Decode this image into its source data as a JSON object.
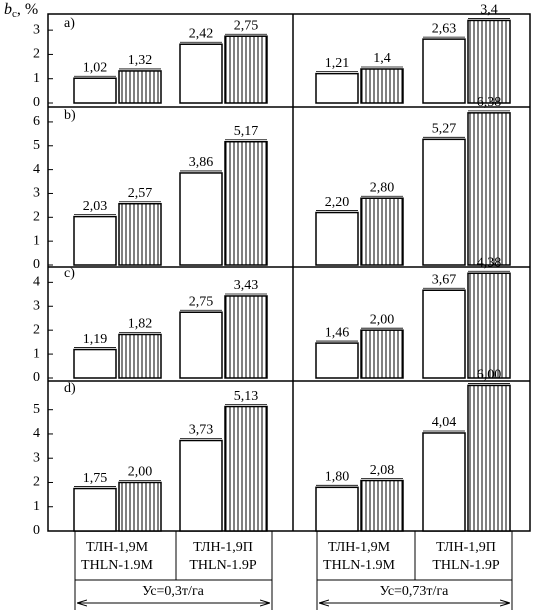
{
  "y_label": {
    "symbol": "b",
    "subscript": "c",
    "unit": ", %"
  },
  "x_axis": {
    "categories": [
      [
        "ТЛН-1,9М",
        "THLN-1.9M"
      ],
      [
        "ТЛН-1,9П",
        "THLN-1.9P"
      ],
      [
        "ТЛН-1,9М",
        "THLN-1.9M"
      ],
      [
        "ТЛН-1,9П",
        "THLN-1.9P"
      ]
    ],
    "groups": [
      "Ус=0,3т/га",
      "Ус=0,73т/га"
    ]
  },
  "chart_data": [
    {
      "type": "bar",
      "panel": "a)",
      "ylim": [
        0,
        3.5
      ],
      "yticks": [
        0,
        1,
        2,
        3
      ],
      "series": [
        {
          "color": "#ffffff",
          "values": [
            1.02,
            2.42,
            1.21,
            2.63
          ],
          "value_labels": [
            "1,02",
            "2,42",
            "1,21",
            "2,63"
          ]
        },
        {
          "color": "#ffffff",
          "pattern": "vertical-lines",
          "values": [
            1.32,
            2.75,
            1.4,
            3.4
          ],
          "value_labels": [
            "1,32",
            "2,75",
            "1,4",
            "3,4"
          ]
        }
      ]
    },
    {
      "type": "bar",
      "panel": "b)",
      "ylim": [
        0,
        6.5
      ],
      "yticks": [
        0,
        1,
        2,
        3,
        4,
        5,
        6
      ],
      "series": [
        {
          "color": "#ffffff",
          "values": [
            2.03,
            3.86,
            2.2,
            5.27
          ],
          "value_labels": [
            "2,03",
            "3,86",
            "2,20",
            "5,27"
          ]
        },
        {
          "color": "#ffffff",
          "pattern": "vertical-lines",
          "values": [
            2.57,
            5.17,
            2.8,
            6.38
          ],
          "value_labels": [
            "2,57",
            "5,17",
            "2,80",
            "6,38"
          ]
        }
      ]
    },
    {
      "type": "bar",
      "panel": "c)",
      "ylim": [
        0,
        4.6
      ],
      "yticks": [
        0,
        1,
        2,
        3,
        4
      ],
      "series": [
        {
          "color": "#ffffff",
          "values": [
            1.19,
            2.75,
            1.46,
            3.67
          ],
          "value_labels": [
            "1,19",
            "2,75",
            "1,46",
            "3,67"
          ]
        },
        {
          "color": "#ffffff",
          "pattern": "vertical-lines",
          "values": [
            1.82,
            3.43,
            2.0,
            4.38
          ],
          "value_labels": [
            "1,82",
            "3,43",
            "2,00",
            "4,38"
          ]
        }
      ]
    },
    {
      "type": "bar",
      "panel": "d)",
      "ylim": [
        0,
        6.1
      ],
      "yticks": [
        0,
        1,
        2,
        3,
        4,
        5
      ],
      "series": [
        {
          "color": "#ffffff",
          "values": [
            1.75,
            3.73,
            1.8,
            4.04
          ],
          "value_labels": [
            "1,75",
            "3,73",
            "1,80",
            "4,04"
          ]
        },
        {
          "color": "#ffffff",
          "pattern": "vertical-lines",
          "values": [
            2.0,
            5.13,
            2.08,
            6.0
          ],
          "value_labels": [
            "2,00",
            "5,13",
            "2,08",
            "6,00"
          ]
        }
      ]
    }
  ]
}
